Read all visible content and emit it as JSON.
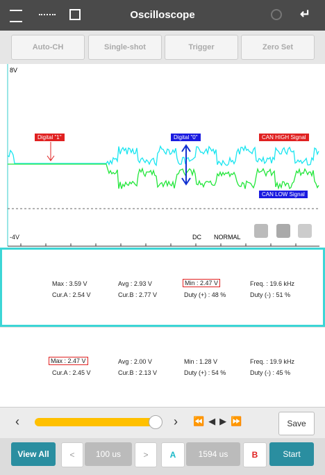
{
  "header": {
    "title": "Oscilloscope"
  },
  "toolbar": [
    "Auto-CH",
    "Single-shot",
    "Trigger",
    "Zero Set"
  ],
  "scope": {
    "top_label": "8V",
    "bottom_label": "-4V",
    "coupling": "DC",
    "mode": "NORMAL",
    "annotations": {
      "digital_one": "Digital \"1\"",
      "digital_zero": "Digital \"0\"",
      "can_high": "CAN HIGH Signal",
      "can_low": "CAN LOW Signal"
    }
  },
  "panels": [
    [
      [
        "Max : 3.59 V",
        "Avg : 2.93 V",
        "Min : 2.47 V",
        "Freq. : 19.6 kHz"
      ],
      [
        "Cur.A : 2.54 V",
        "Cur.B : 2.77 V",
        "Duty (+) : 48 %",
        "Duty (-) : 51 %"
      ]
    ],
    [
      [
        "Max : 2.47 V",
        "Avg : 2.00 V",
        "Min : 1.28 V",
        "Freq. : 19.9 kHz"
      ],
      [
        "Cur.A : 2.45 V",
        "Cur.B : 2.13 V",
        "Duty (+) : 54 %",
        "Duty (-) : 45 %"
      ]
    ]
  ],
  "controls": {
    "save": "Save",
    "view_all": "View All",
    "time_div": "100 us",
    "cursor_a": "A",
    "cursor_time": "1594 us",
    "cursor_b": "B",
    "start": "Start"
  }
}
